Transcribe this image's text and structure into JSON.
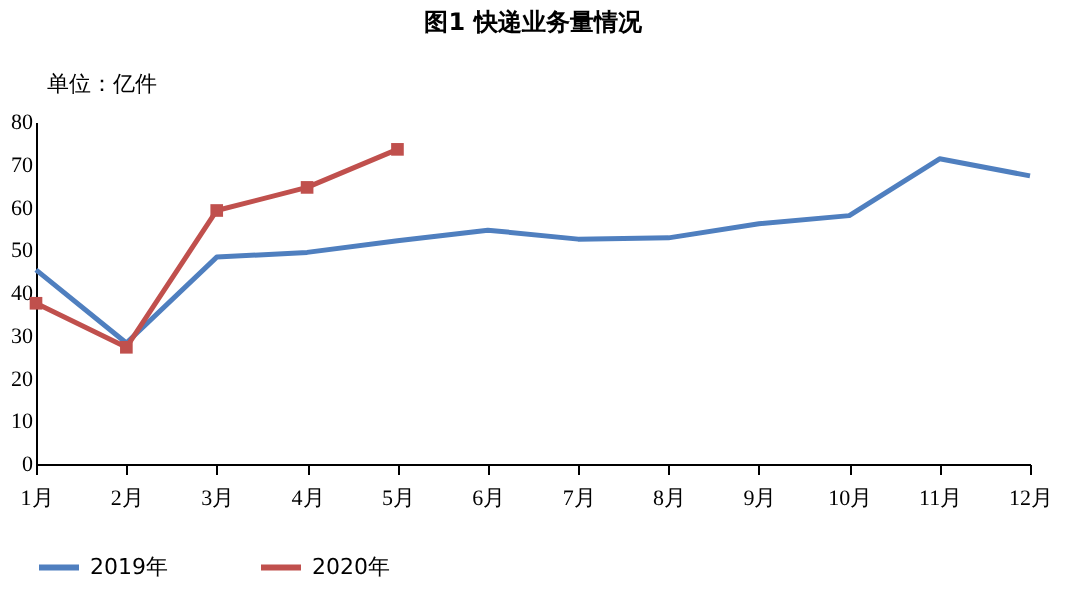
{
  "chart_data": {
    "type": "line",
    "title": "图1    快递业务量情况",
    "ylabel": "单位：亿件",
    "categories": [
      "1月",
      "2月",
      "3月",
      "4月",
      "5月",
      "6月",
      "7月",
      "8月",
      "9月",
      "10月",
      "11月",
      "12月"
    ],
    "series": [
      {
        "name": "2019年",
        "color": "#4f7fbf",
        "marker": "none",
        "values": [
          45.4,
          28.3,
          48.4,
          49.5,
          52.2,
          54.7,
          52.6,
          52.9,
          56.2,
          58.1,
          71.4,
          67.4
        ]
      },
      {
        "name": "2020年",
        "color": "#c0504d",
        "marker": "square",
        "values": [
          37.6,
          27.3,
          59.3,
          64.7,
          73.6,
          null,
          null,
          null,
          null,
          null,
          null,
          null
        ]
      }
    ],
    "ylim": [
      0,
      80
    ],
    "yticks": [
      0,
      10,
      20,
      30,
      40,
      50,
      60,
      70,
      80
    ],
    "grid": false,
    "legend": "bottom",
    "line_style": "solid"
  }
}
